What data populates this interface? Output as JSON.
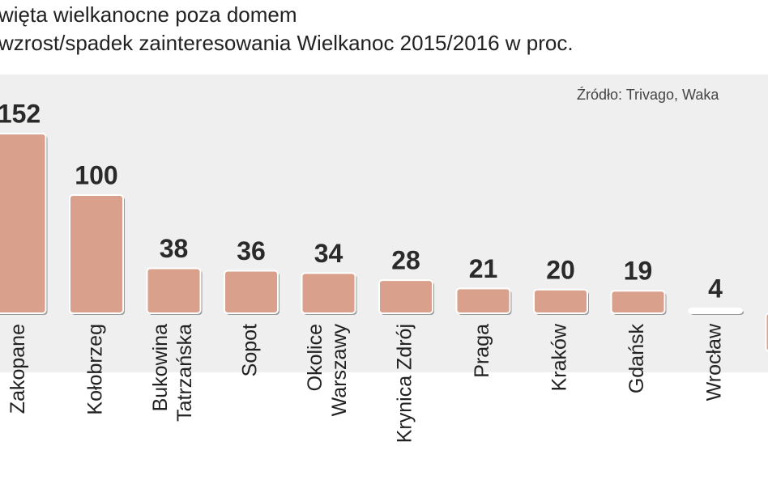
{
  "chart_data": {
    "type": "bar",
    "title": "więta  wielkanocne poza domem",
    "subtitle": "wzrost/spadek zainteresowania  Wielkanoc 2015/2016 w proc.",
    "source": "Źródło: Trivago, Waka",
    "categories": [
      [
        "Zakopane"
      ],
      [
        "Kołobrzeg"
      ],
      [
        "Bukowina",
        "Tatrzańska"
      ],
      [
        "Sopot"
      ],
      [
        "Okolice",
        "Warszawy"
      ],
      [
        "Krynica Zdrój"
      ],
      [
        "Praga"
      ],
      [
        "Kraków"
      ],
      [
        "Gdańsk"
      ],
      [
        "Wrocław"
      ],
      null
    ],
    "values": [
      152,
      100,
      38,
      36,
      34,
      28,
      21,
      20,
      19,
      4,
      -32
    ],
    "color": "#d9a08c",
    "ylim": [
      -40,
      160
    ]
  }
}
